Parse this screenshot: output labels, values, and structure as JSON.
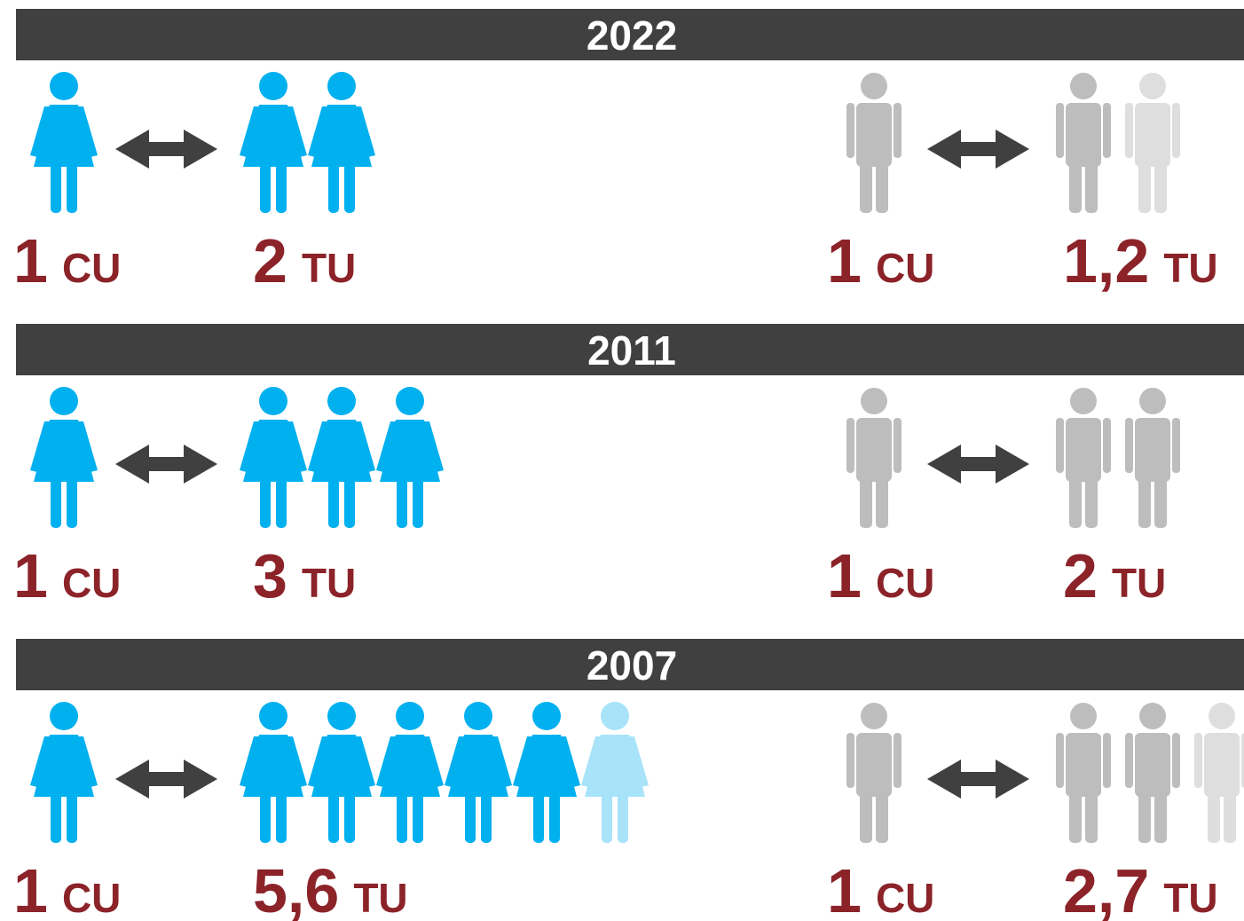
{
  "sections": [
    {
      "year": "2022",
      "women": {
        "from": 1,
        "from_unit": "CU",
        "to": 2,
        "to_unit": "TU"
      },
      "men": {
        "from": 1,
        "from_unit": "CU",
        "to": 1.2,
        "to_label": "1,2",
        "to_unit": "TU"
      }
    },
    {
      "year": "2011",
      "women": {
        "from": 1,
        "from_unit": "CU",
        "to": 3,
        "to_unit": "TU"
      },
      "men": {
        "from": 1,
        "from_unit": "CU",
        "to": 2,
        "to_unit": "TU"
      }
    },
    {
      "year": "2007",
      "women": {
        "from": 1,
        "from_unit": "CU",
        "to": 5.6,
        "to_label": "5,6",
        "to_unit": "TU"
      },
      "men": {
        "from": 1,
        "from_unit": "CU",
        "to": 2.7,
        "to_label": "2,7",
        "to_unit": "TU"
      }
    }
  ]
}
